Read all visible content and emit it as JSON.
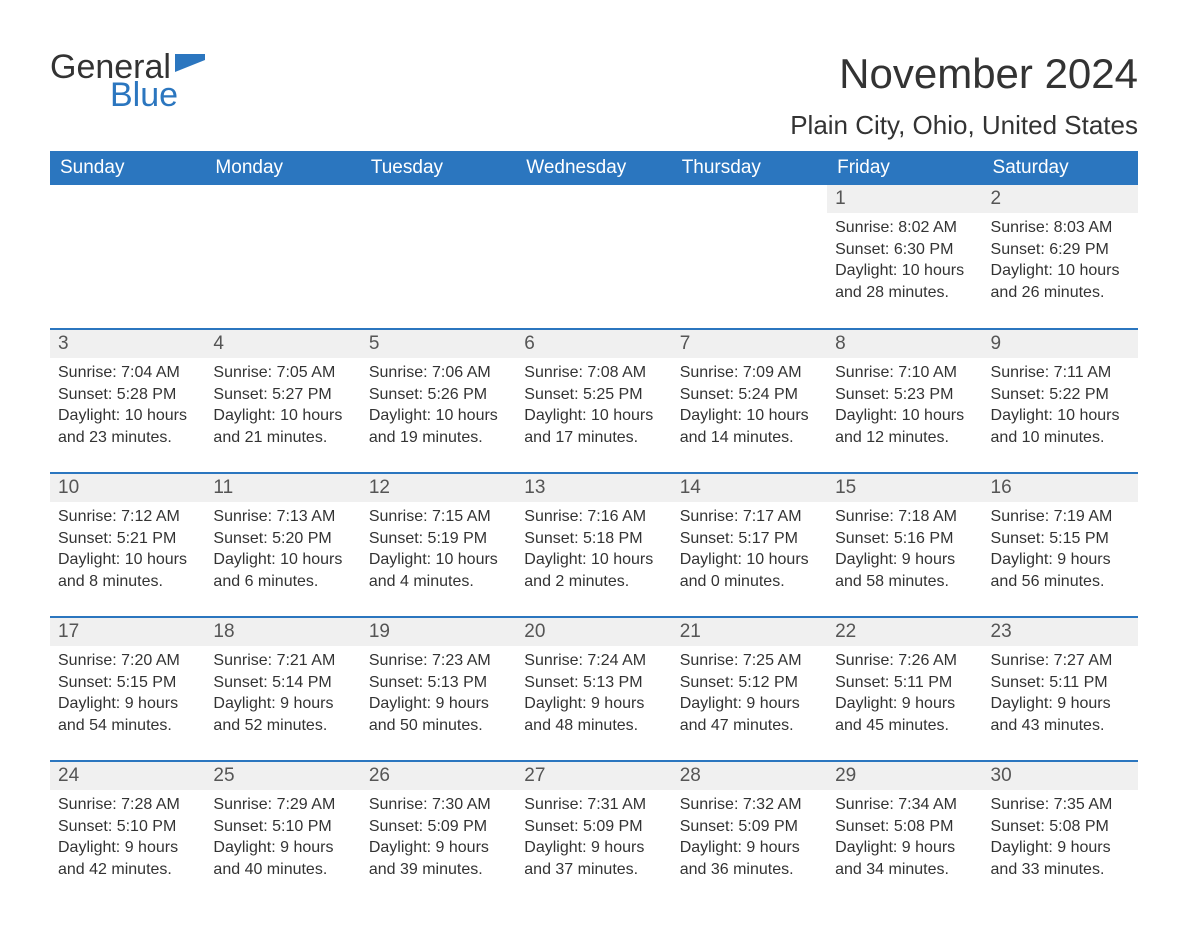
{
  "brand": {
    "word1": "General",
    "word2": "Blue",
    "flag_color": "#2b76bf",
    "word1_color": "#333333",
    "word2_color": "#2b76bf"
  },
  "title": "November 2024",
  "location": "Plain City, Ohio, United States",
  "colors": {
    "header_bg": "#2b76bf",
    "header_text": "#ffffff",
    "daynum_bg": "#f0f0f0",
    "row_border": "#2b76bf",
    "text": "#333333",
    "page_bg": "#ffffff"
  },
  "fonts": {
    "title_size_pt": 32,
    "location_size_pt": 20,
    "header_size_pt": 14,
    "daynum_size_pt": 14,
    "body_size_pt": 12
  },
  "day_headers": [
    "Sunday",
    "Monday",
    "Tuesday",
    "Wednesday",
    "Thursday",
    "Friday",
    "Saturday"
  ],
  "weeks": [
    [
      null,
      null,
      null,
      null,
      null,
      {
        "n": "1",
        "sunrise": "Sunrise: 8:02 AM",
        "sunset": "Sunset: 6:30 PM",
        "daylight1": "Daylight: 10 hours",
        "daylight2": "and 28 minutes."
      },
      {
        "n": "2",
        "sunrise": "Sunrise: 8:03 AM",
        "sunset": "Sunset: 6:29 PM",
        "daylight1": "Daylight: 10 hours",
        "daylight2": "and 26 minutes."
      }
    ],
    [
      {
        "n": "3",
        "sunrise": "Sunrise: 7:04 AM",
        "sunset": "Sunset: 5:28 PM",
        "daylight1": "Daylight: 10 hours",
        "daylight2": "and 23 minutes."
      },
      {
        "n": "4",
        "sunrise": "Sunrise: 7:05 AM",
        "sunset": "Sunset: 5:27 PM",
        "daylight1": "Daylight: 10 hours",
        "daylight2": "and 21 minutes."
      },
      {
        "n": "5",
        "sunrise": "Sunrise: 7:06 AM",
        "sunset": "Sunset: 5:26 PM",
        "daylight1": "Daylight: 10 hours",
        "daylight2": "and 19 minutes."
      },
      {
        "n": "6",
        "sunrise": "Sunrise: 7:08 AM",
        "sunset": "Sunset: 5:25 PM",
        "daylight1": "Daylight: 10 hours",
        "daylight2": "and 17 minutes."
      },
      {
        "n": "7",
        "sunrise": "Sunrise: 7:09 AM",
        "sunset": "Sunset: 5:24 PM",
        "daylight1": "Daylight: 10 hours",
        "daylight2": "and 14 minutes."
      },
      {
        "n": "8",
        "sunrise": "Sunrise: 7:10 AM",
        "sunset": "Sunset: 5:23 PM",
        "daylight1": "Daylight: 10 hours",
        "daylight2": "and 12 minutes."
      },
      {
        "n": "9",
        "sunrise": "Sunrise: 7:11 AM",
        "sunset": "Sunset: 5:22 PM",
        "daylight1": "Daylight: 10 hours",
        "daylight2": "and 10 minutes."
      }
    ],
    [
      {
        "n": "10",
        "sunrise": "Sunrise: 7:12 AM",
        "sunset": "Sunset: 5:21 PM",
        "daylight1": "Daylight: 10 hours",
        "daylight2": "and 8 minutes."
      },
      {
        "n": "11",
        "sunrise": "Sunrise: 7:13 AM",
        "sunset": "Sunset: 5:20 PM",
        "daylight1": "Daylight: 10 hours",
        "daylight2": "and 6 minutes."
      },
      {
        "n": "12",
        "sunrise": "Sunrise: 7:15 AM",
        "sunset": "Sunset: 5:19 PM",
        "daylight1": "Daylight: 10 hours",
        "daylight2": "and 4 minutes."
      },
      {
        "n": "13",
        "sunrise": "Sunrise: 7:16 AM",
        "sunset": "Sunset: 5:18 PM",
        "daylight1": "Daylight: 10 hours",
        "daylight2": "and 2 minutes."
      },
      {
        "n": "14",
        "sunrise": "Sunrise: 7:17 AM",
        "sunset": "Sunset: 5:17 PM",
        "daylight1": "Daylight: 10 hours",
        "daylight2": "and 0 minutes."
      },
      {
        "n": "15",
        "sunrise": "Sunrise: 7:18 AM",
        "sunset": "Sunset: 5:16 PM",
        "daylight1": "Daylight: 9 hours",
        "daylight2": "and 58 minutes."
      },
      {
        "n": "16",
        "sunrise": "Sunrise: 7:19 AM",
        "sunset": "Sunset: 5:15 PM",
        "daylight1": "Daylight: 9 hours",
        "daylight2": "and 56 minutes."
      }
    ],
    [
      {
        "n": "17",
        "sunrise": "Sunrise: 7:20 AM",
        "sunset": "Sunset: 5:15 PM",
        "daylight1": "Daylight: 9 hours",
        "daylight2": "and 54 minutes."
      },
      {
        "n": "18",
        "sunrise": "Sunrise: 7:21 AM",
        "sunset": "Sunset: 5:14 PM",
        "daylight1": "Daylight: 9 hours",
        "daylight2": "and 52 minutes."
      },
      {
        "n": "19",
        "sunrise": "Sunrise: 7:23 AM",
        "sunset": "Sunset: 5:13 PM",
        "daylight1": "Daylight: 9 hours",
        "daylight2": "and 50 minutes."
      },
      {
        "n": "20",
        "sunrise": "Sunrise: 7:24 AM",
        "sunset": "Sunset: 5:13 PM",
        "daylight1": "Daylight: 9 hours",
        "daylight2": "and 48 minutes."
      },
      {
        "n": "21",
        "sunrise": "Sunrise: 7:25 AM",
        "sunset": "Sunset: 5:12 PM",
        "daylight1": "Daylight: 9 hours",
        "daylight2": "and 47 minutes."
      },
      {
        "n": "22",
        "sunrise": "Sunrise: 7:26 AM",
        "sunset": "Sunset: 5:11 PM",
        "daylight1": "Daylight: 9 hours",
        "daylight2": "and 45 minutes."
      },
      {
        "n": "23",
        "sunrise": "Sunrise: 7:27 AM",
        "sunset": "Sunset: 5:11 PM",
        "daylight1": "Daylight: 9 hours",
        "daylight2": "and 43 minutes."
      }
    ],
    [
      {
        "n": "24",
        "sunrise": "Sunrise: 7:28 AM",
        "sunset": "Sunset: 5:10 PM",
        "daylight1": "Daylight: 9 hours",
        "daylight2": "and 42 minutes."
      },
      {
        "n": "25",
        "sunrise": "Sunrise: 7:29 AM",
        "sunset": "Sunset: 5:10 PM",
        "daylight1": "Daylight: 9 hours",
        "daylight2": "and 40 minutes."
      },
      {
        "n": "26",
        "sunrise": "Sunrise: 7:30 AM",
        "sunset": "Sunset: 5:09 PM",
        "daylight1": "Daylight: 9 hours",
        "daylight2": "and 39 minutes."
      },
      {
        "n": "27",
        "sunrise": "Sunrise: 7:31 AM",
        "sunset": "Sunset: 5:09 PM",
        "daylight1": "Daylight: 9 hours",
        "daylight2": "and 37 minutes."
      },
      {
        "n": "28",
        "sunrise": "Sunrise: 7:32 AM",
        "sunset": "Sunset: 5:09 PM",
        "daylight1": "Daylight: 9 hours",
        "daylight2": "and 36 minutes."
      },
      {
        "n": "29",
        "sunrise": "Sunrise: 7:34 AM",
        "sunset": "Sunset: 5:08 PM",
        "daylight1": "Daylight: 9 hours",
        "daylight2": "and 34 minutes."
      },
      {
        "n": "30",
        "sunrise": "Sunrise: 7:35 AM",
        "sunset": "Sunset: 5:08 PM",
        "daylight1": "Daylight: 9 hours",
        "daylight2": "and 33 minutes."
      }
    ]
  ]
}
